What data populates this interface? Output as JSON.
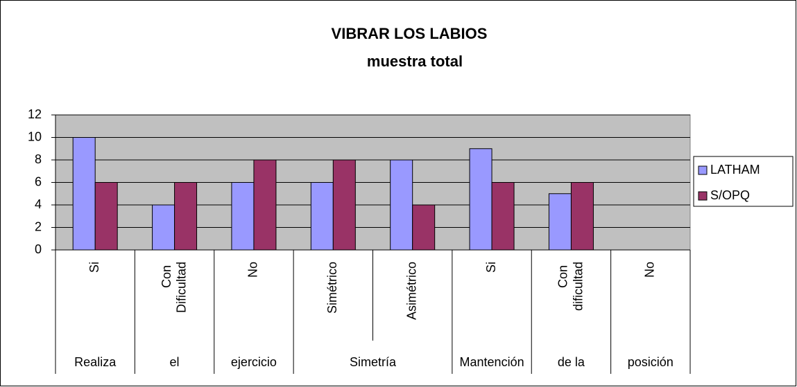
{
  "chart_data": {
    "type": "bar",
    "title": "VIBRAR LOS LABIOS",
    "subtitle": "muestra total",
    "categories": [
      "Si",
      "Con Dificultad",
      "No",
      "Simétrico",
      "Asimétrico",
      "Si",
      "Con dificultad",
      "No"
    ],
    "groups": [
      "Realiza",
      "el",
      "ejercicio",
      "Simetría",
      null,
      "Mantención",
      "de la",
      "posición"
    ],
    "series": [
      {
        "name": "LATHAM",
        "color": "#9999ff",
        "values": [
          10,
          4,
          6,
          6,
          8,
          9,
          5,
          0
        ]
      },
      {
        "name": "S/OPQ",
        "color": "#993366",
        "values": [
          6,
          6,
          8,
          8,
          4,
          6,
          6,
          0
        ]
      }
    ],
    "ylim": [
      0,
      12
    ],
    "yticks": [
      0,
      2,
      4,
      6,
      8,
      10,
      12
    ],
    "grid": true,
    "legend": "right"
  }
}
